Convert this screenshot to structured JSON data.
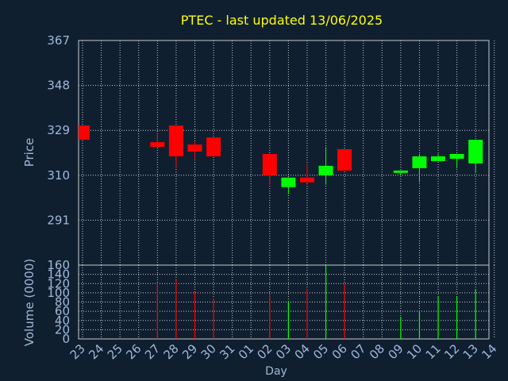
{
  "chart_data": {
    "type": "candlestick",
    "title": "PTEC - last updated 13/06/2025",
    "xlabel": "Day",
    "ylabel": "Price",
    "volume_label": "Volume (0000)",
    "grid": true,
    "price_ylim": [
      272,
      367
    ],
    "price_ticks": [
      "367",
      "348",
      "329",
      "310",
      "291"
    ],
    "volume_ylim": [
      0,
      160
    ],
    "volume_ticks": [
      "160",
      "140",
      "120",
      "100",
      "80",
      "60",
      "40",
      "20",
      "0"
    ],
    "x_ticks": [
      "23",
      "24",
      "25",
      "26",
      "27",
      "28",
      "29",
      "30",
      "31",
      "01",
      "02",
      "03",
      "04",
      "05",
      "06",
      "07",
      "08",
      "09",
      "10",
      "11",
      "12",
      "13",
      "14"
    ],
    "colors": {
      "up": "#00ff00",
      "down": "#ff0000",
      "title": "#ffff00",
      "axis_text": "#a0b8d8",
      "grid": "#c8c8c8",
      "background": "#0f1f30"
    },
    "candles": [
      {
        "day": "23",
        "open": 331,
        "close": 325,
        "high": 331,
        "low": 325
      },
      {
        "day": "27",
        "open": 324,
        "close": 322,
        "high": 328,
        "low": 322
      },
      {
        "day": "28",
        "open": 331,
        "close": 318,
        "high": 331,
        "low": 313
      },
      {
        "day": "29",
        "open": 323,
        "close": 320,
        "high": 324,
        "low": 317
      },
      {
        "day": "30",
        "open": 326,
        "close": 318,
        "high": 326,
        "low": 318
      },
      {
        "day": "02",
        "open": 319,
        "close": 310,
        "high": 319,
        "low": 306
      },
      {
        "day": "03",
        "open": 305,
        "close": 309,
        "high": 309,
        "low": 302
      },
      {
        "day": "04",
        "open": 309,
        "close": 307,
        "high": 315,
        "low": 307
      },
      {
        "day": "05",
        "open": 310,
        "close": 314,
        "high": 322,
        "low": 306
      },
      {
        "day": "06",
        "open": 321,
        "close": 312,
        "high": 321,
        "low": 312
      },
      {
        "day": "09",
        "open": 311,
        "close": 312,
        "high": 312,
        "low": 310
      },
      {
        "day": "10",
        "open": 313,
        "close": 318,
        "high": 319,
        "low": 307
      },
      {
        "day": "11",
        "open": 316,
        "close": 318,
        "high": 319,
        "low": 316
      },
      {
        "day": "12",
        "open": 317,
        "close": 319,
        "high": 319,
        "low": 313
      },
      {
        "day": "13",
        "open": 315,
        "close": 325,
        "high": 325,
        "low": 311
      }
    ],
    "volume": [
      {
        "day": "27",
        "value": 122,
        "dir": "down"
      },
      {
        "day": "28",
        "value": 128,
        "dir": "down"
      },
      {
        "day": "29",
        "value": 102,
        "dir": "down"
      },
      {
        "day": "30",
        "value": 88,
        "dir": "down"
      },
      {
        "day": "02",
        "value": 95,
        "dir": "down"
      },
      {
        "day": "03",
        "value": 82,
        "dir": "up"
      },
      {
        "day": "04",
        "value": 108,
        "dir": "down"
      },
      {
        "day": "05",
        "value": 160,
        "dir": "up"
      },
      {
        "day": "06",
        "value": 120,
        "dir": "down"
      },
      {
        "day": "09",
        "value": 48,
        "dir": "up"
      },
      {
        "day": "10",
        "value": 62,
        "dir": "up"
      },
      {
        "day": "11",
        "value": 92,
        "dir": "up"
      },
      {
        "day": "12",
        "value": 92,
        "dir": "up"
      },
      {
        "day": "13",
        "value": 108,
        "dir": "up"
      }
    ]
  }
}
